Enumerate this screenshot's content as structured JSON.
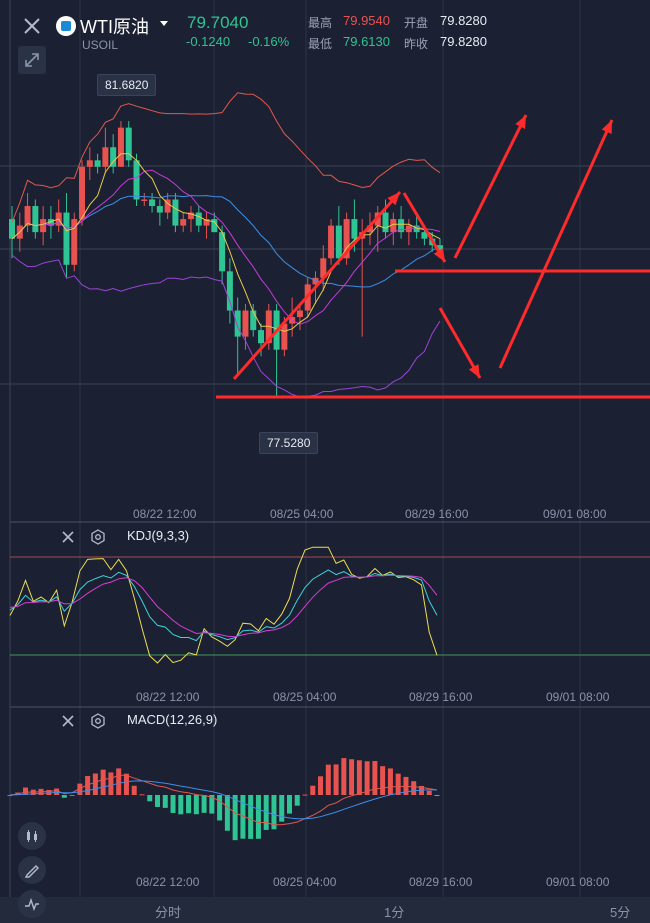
{
  "header": {
    "title": "WTI原油",
    "code": "USOIL",
    "price": "79.7040",
    "change": "-0.1240",
    "change_pct": "-0.16%",
    "high_label": "最高",
    "high": "79.9540",
    "open_label": "开盘",
    "open": "79.8280",
    "low_label": "最低",
    "low": "79.6130",
    "prev_label": "昨收",
    "prev_close": "79.8280"
  },
  "main_chart": {
    "max_label": "81.6820",
    "min_label": "77.5280",
    "x_labels": [
      "08/22 12:00",
      "08/25 04:00",
      "08/29 16:00",
      "09/01 08:00"
    ]
  },
  "kdj": {
    "title": "KDJ(9,3,3)",
    "x_labels": [
      "08/22 12:00",
      "08/25 04:00",
      "08/29 16:00",
      "09/01 08:00"
    ]
  },
  "macd": {
    "title": "MACD(12,26,9)",
    "x_labels": [
      "08/22 12:00",
      "08/25 04:00",
      "08/29 16:00",
      "09/01 08:00"
    ]
  },
  "tabs": [
    "分时",
    "1分",
    "5分"
  ],
  "colors": {
    "up": "#e9534f",
    "down": "#2fc493",
    "bg": "#1b2132",
    "annotation": "#ff2b2b"
  },
  "icons": [
    "close-icon",
    "fullscreen-icon",
    "settings-icon",
    "candlestick-icon",
    "draw-icon",
    "indicator-icon",
    "dropdown-icon"
  ],
  "chart_data": {
    "type": "candlestick",
    "ylim": [
      77.2,
      82.1
    ],
    "candles": [
      [
        80.2,
        80.4,
        79.6,
        79.9
      ],
      [
        79.9,
        80.3,
        79.7,
        80.1
      ],
      [
        80.1,
        80.6,
        80.0,
        80.4
      ],
      [
        80.4,
        80.5,
        79.9,
        80.0
      ],
      [
        80.0,
        80.4,
        79.8,
        80.2
      ],
      [
        80.2,
        80.4,
        79.9,
        80.1
      ],
      [
        80.1,
        80.5,
        80.0,
        80.3
      ],
      [
        80.3,
        80.6,
        79.3,
        79.5
      ],
      [
        79.5,
        80.3,
        79.4,
        80.2
      ],
      [
        80.2,
        81.1,
        80.1,
        81.0
      ],
      [
        81.0,
        81.3,
        80.8,
        81.1
      ],
      [
        81.1,
        81.2,
        80.9,
        81.0
      ],
      [
        81.0,
        81.6,
        80.9,
        81.3
      ],
      [
        81.3,
        81.5,
        80.9,
        81.0
      ],
      [
        81.0,
        81.7,
        81.0,
        81.6
      ],
      [
        81.6,
        81.7,
        81.0,
        81.1
      ],
      [
        81.1,
        81.2,
        80.4,
        80.5
      ],
      [
        80.5,
        80.6,
        80.4,
        80.5
      ],
      [
        80.5,
        80.6,
        80.3,
        80.4
      ],
      [
        80.4,
        80.5,
        80.1,
        80.3
      ],
      [
        80.3,
        80.6,
        80.2,
        80.5
      ],
      [
        80.5,
        80.6,
        80.0,
        80.1
      ],
      [
        80.1,
        80.3,
        80.0,
        80.2
      ],
      [
        80.2,
        80.4,
        80.0,
        80.3
      ],
      [
        80.3,
        80.4,
        80.0,
        80.1
      ],
      [
        80.1,
        80.3,
        79.9,
        80.2
      ],
      [
        80.2,
        80.3,
        80.0,
        80.0
      ],
      [
        80.0,
        80.1,
        79.2,
        79.4
      ],
      [
        79.4,
        79.6,
        78.6,
        78.8
      ],
      [
        78.8,
        79.0,
        77.8,
        78.4
      ],
      [
        78.4,
        78.9,
        78.2,
        78.8
      ],
      [
        78.8,
        78.9,
        78.4,
        78.5
      ],
      [
        78.5,
        78.6,
        78.1,
        78.3
      ],
      [
        78.3,
        78.9,
        78.2,
        78.8
      ],
      [
        78.8,
        78.9,
        77.5,
        78.2
      ],
      [
        78.2,
        78.7,
        78.1,
        78.6
      ],
      [
        78.6,
        79.0,
        78.4,
        78.7
      ],
      [
        78.7,
        78.9,
        78.5,
        78.8
      ],
      [
        78.8,
        79.3,
        78.7,
        79.2
      ],
      [
        79.2,
        79.4,
        78.9,
        79.3
      ],
      [
        79.3,
        79.8,
        79.1,
        79.6
      ],
      [
        79.6,
        80.2,
        79.5,
        80.1
      ],
      [
        80.1,
        80.4,
        79.5,
        79.6
      ],
      [
        79.6,
        80.3,
        79.5,
        80.2
      ],
      [
        80.2,
        80.5,
        79.7,
        79.9
      ],
      [
        79.9,
        80.2,
        78.4,
        80.0
      ],
      [
        80.0,
        80.3,
        79.8,
        80.1
      ],
      [
        80.1,
        80.4,
        79.7,
        80.3
      ],
      [
        80.3,
        80.5,
        79.9,
        80.0
      ],
      [
        80.0,
        80.3,
        79.8,
        80.2
      ],
      [
        80.2,
        80.4,
        79.9,
        80.0
      ],
      [
        80.0,
        80.2,
        79.8,
        80.1
      ],
      [
        80.1,
        80.3,
        79.9,
        80.0
      ],
      [
        80.0,
        80.1,
        79.8,
        79.9
      ],
      [
        79.9,
        80.0,
        79.7,
        79.8
      ],
      [
        79.8,
        79.9,
        79.6,
        79.7
      ]
    ]
  }
}
